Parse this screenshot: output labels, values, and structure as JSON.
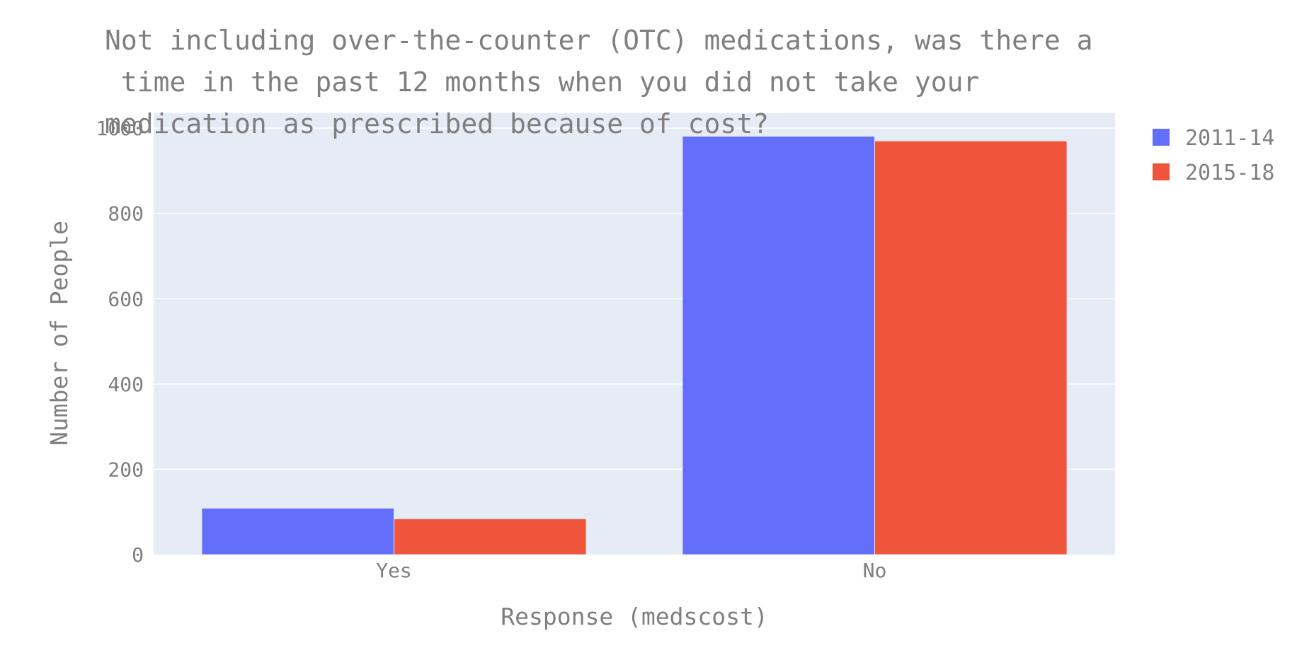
{
  "chart_data": {
    "type": "bar",
    "title": "Not including over-the-counter (OTC) medications, was there a time in the past 12 months when you did not take your medication as prescribed because of cost?",
    "title_lines": [
      "Not including over-the-counter (OTC) medications, was there a",
      " time in the past 12 months when you did not take your",
      "medication as prescribed because of cost?"
    ],
    "xlabel": "Response (medscost)",
    "ylabel": "Number of People",
    "categories": [
      "Yes",
      "No"
    ],
    "series": [
      {
        "name": "2011-14",
        "values": [
          109,
          981
        ],
        "color": "#636efa"
      },
      {
        "name": "2015-18",
        "values": [
          84,
          970
        ],
        "color": "#ef553b"
      }
    ],
    "ylim": [
      0,
      1035
    ],
    "yticks": [
      0,
      200,
      400,
      600,
      800,
      1000
    ],
    "ytick_labels": [
      "0",
      "200",
      "400",
      "600",
      "800",
      "1000"
    ],
    "grid": true,
    "legend_position": "top-right",
    "barmode": "group",
    "colors": {
      "plot_background": "#e5ecf6",
      "grid": "#ffffff",
      "text": "#7f7f7f"
    }
  }
}
